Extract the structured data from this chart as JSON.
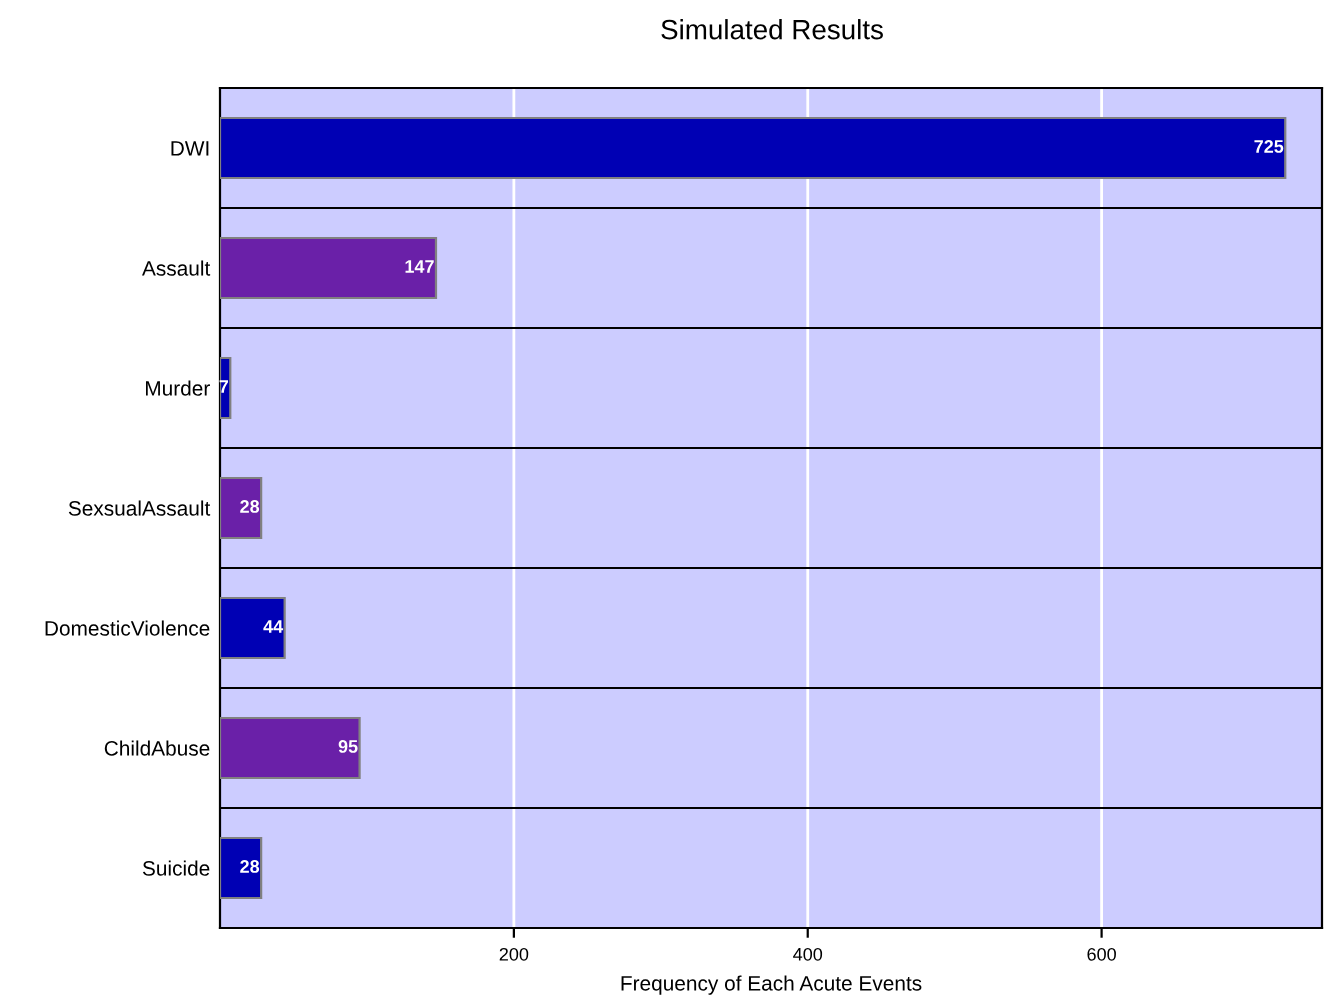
{
  "chart_data": {
    "type": "bar",
    "orientation": "horizontal",
    "title": "Simulated Results",
    "xlabel": "Frequency of Each Acute Events",
    "categories": [
      "DWI",
      "Assault",
      "Murder",
      "SexsualAssault",
      "DomesticViolence",
      "ChildAbuse",
      "Suicide"
    ],
    "values": [
      725,
      147,
      7,
      28,
      44,
      95,
      28
    ],
    "colors": [
      "#0000b4",
      "#6a20a8",
      "#0000b4",
      "#6a20a8",
      "#0000b4",
      "#6a20a8",
      "#0000b4"
    ],
    "xlim": [
      0,
      750
    ],
    "xticks": [
      200,
      400,
      600
    ],
    "grid": "x",
    "data_labels": true,
    "legend": false
  }
}
